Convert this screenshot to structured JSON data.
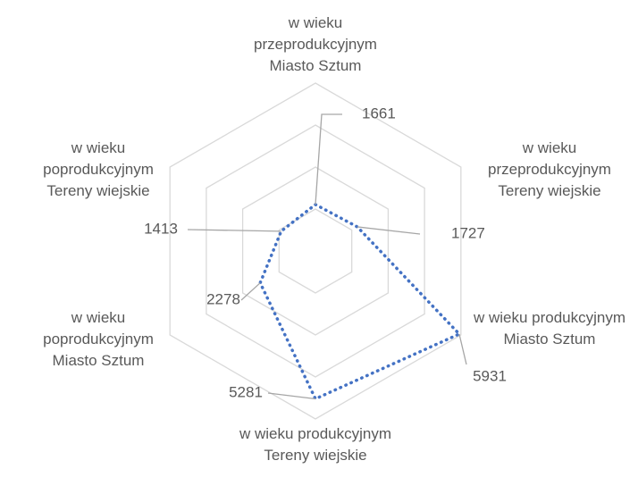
{
  "chart_data": {
    "type": "radar",
    "categories": [
      "w wieku przeprodukcyjnym Miasto Sztum",
      "w wieku przeprodukcyjnym Tereny wiejskie",
      "w wieku produkcyjnym Miasto Sztum",
      "w wieku produkcyjnym Tereny wiejskie",
      "w wieku poprodukcyjnym Miasto Sztum",
      "w wieku poprodukcyjnym Tereny wiejskie"
    ],
    "values": [
      1661,
      1727,
      5931,
      5281,
      2278,
      1413
    ],
    "color": "#4472c4",
    "ylim": [
      0,
      6000
    ],
    "yticks": [
      0,
      1500,
      3000,
      4500,
      6000
    ],
    "grid": true
  }
}
